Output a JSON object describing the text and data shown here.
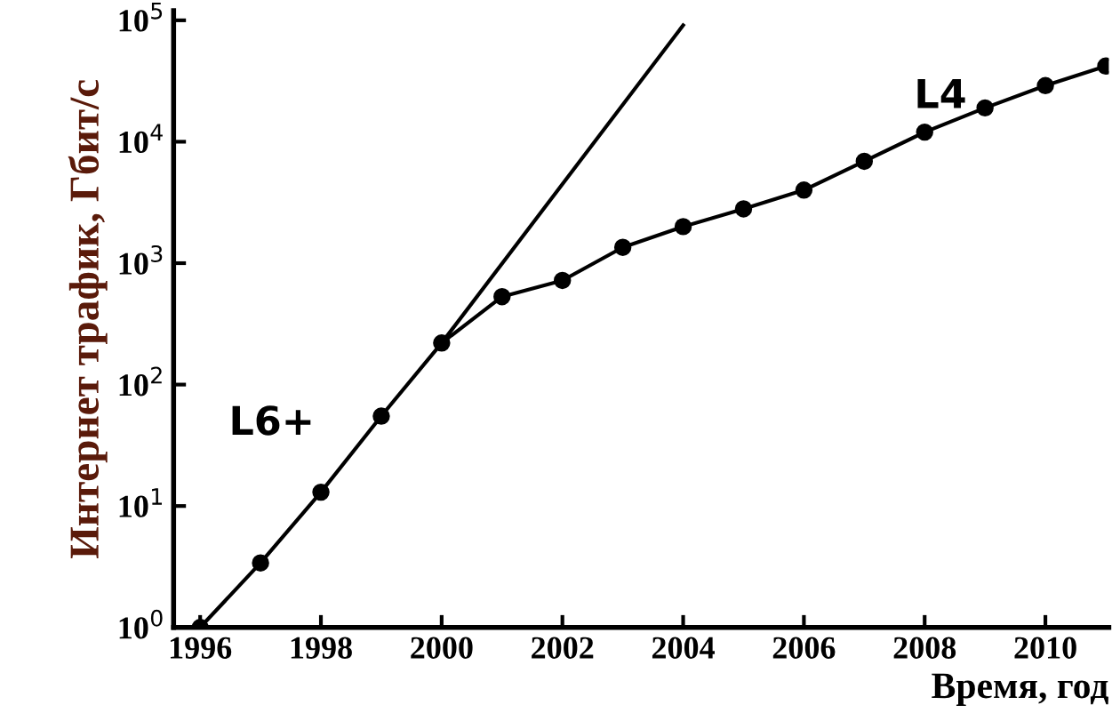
{
  "chart_data": {
    "type": "line",
    "xlabel": "Время, год",
    "ylabel": "Интернет трафик, Гбит/с",
    "log": "y",
    "grid": false,
    "legend": false,
    "marker": "circle",
    "line_style": "solid",
    "xlim": [
      1995.56,
      2011.05
    ],
    "xticks": [
      1996,
      1998,
      2000,
      2002,
      2004,
      2006,
      2008,
      2010
    ],
    "ylim": [
      1,
      120000
    ],
    "yticks": [
      {
        "value": 1,
        "label": "10$^{0}$"
      },
      {
        "value": 10,
        "label": "10$^{1}$"
      },
      {
        "value": 100,
        "label": "10$^{2}$"
      },
      {
        "value": 1000,
        "label": "10$^{3}$"
      },
      {
        "value": 10000,
        "label": "10$^{4}$"
      },
      {
        "value": 100000,
        "label": "10$^{5}$"
      }
    ],
    "series": [
      {
        "color": "#000000",
        "x": [
          1996,
          1997,
          1998,
          1999,
          2000,
          2001,
          2002,
          2003,
          2004,
          2005,
          2006,
          2007,
          2008,
          2009,
          2010,
          2011
        ],
        "values": [
          1,
          3.4,
          13,
          55,
          220,
          530,
          720,
          1350,
          2000,
          2800,
          4000,
          6900,
          12000,
          19000,
          29000,
          42000
        ]
      },
      {
        "type": "line",
        "marker": "none",
        "color": "#000000",
        "x": [
          2000,
          2004
        ],
        "values": [
          220,
          91000
        ]
      }
    ],
    "annotations": [
      "L6+",
      "L4"
    ]
  }
}
